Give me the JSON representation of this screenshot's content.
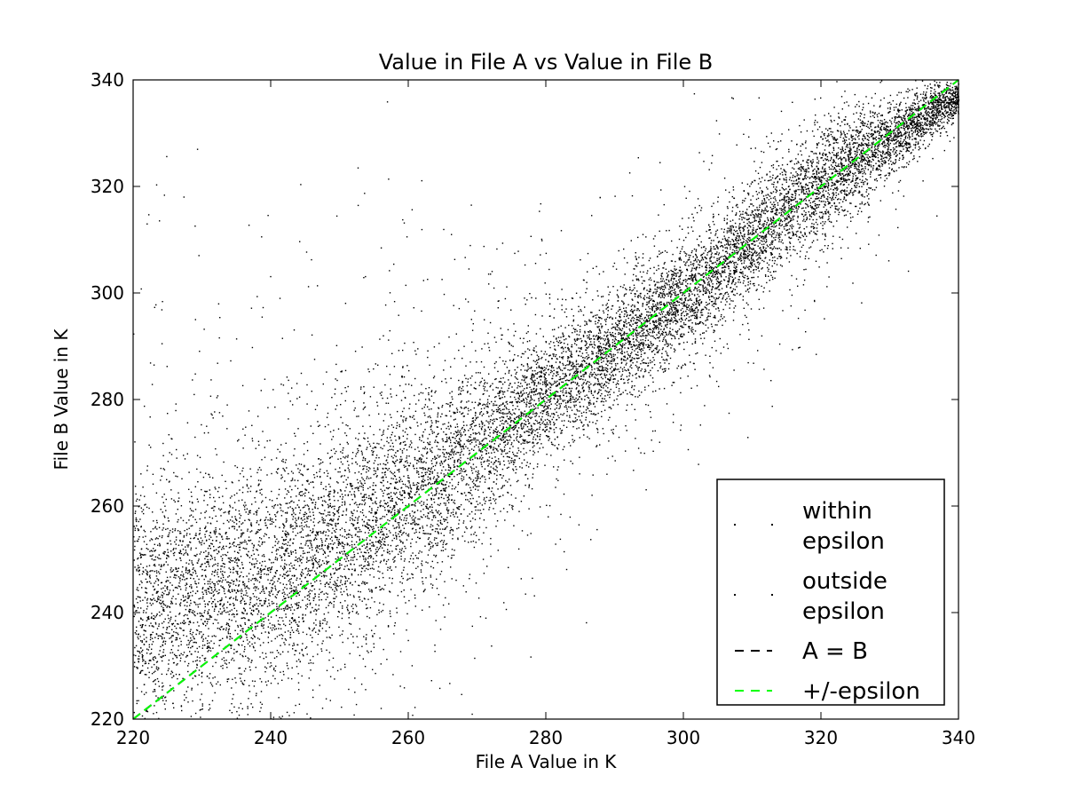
{
  "chart_data": {
    "type": "scatter",
    "title": "Value in File A vs Value in File B",
    "xlabel": "File A Value in K",
    "ylabel": "File B Value in K",
    "xlim": [
      220,
      340
    ],
    "ylim": [
      220,
      340
    ],
    "x_ticks": [
      220,
      240,
      260,
      280,
      300,
      320,
      340
    ],
    "y_ticks": [
      220,
      240,
      260,
      280,
      300,
      320,
      340
    ],
    "grid": false,
    "legend_position": "lower-right",
    "series": [
      {
        "name": "within\nepsilon",
        "label_lines": [
          "within",
          "epsilon"
        ],
        "style": "points",
        "color": "#000000"
      },
      {
        "name": "outside\nepsilon",
        "label_lines": [
          "outside",
          "epsilon"
        ],
        "style": "points",
        "color": "#000000"
      },
      {
        "name": "A = B",
        "label_lines": [
          "A = B"
        ],
        "style": "dashed",
        "color": "#000000",
        "x": [
          220,
          340
        ],
        "y": [
          220,
          340
        ]
      },
      {
        "name": "+/-epsilon",
        "label_lines": [
          "+/-epsilon"
        ],
        "style": "dashed",
        "color": "#00ff00",
        "x": [
          220,
          340
        ],
        "y": [
          220,
          340
        ]
      }
    ],
    "point_cloud": {
      "description_band": [
        {
          "x": 220,
          "y_low": 220,
          "y_high": 262
        },
        {
          "x": 240,
          "y_low": 226,
          "y_high": 268
        },
        {
          "x": 260,
          "y_low": 244,
          "y_high": 280
        },
        {
          "x": 280,
          "y_low": 270,
          "y_high": 292
        },
        {
          "x": 300,
          "y_low": 290,
          "y_high": 308
        },
        {
          "x": 320,
          "y_low": 312,
          "y_high": 330
        },
        {
          "x": 340,
          "y_low": 334,
          "y_high": 340
        }
      ]
    }
  }
}
